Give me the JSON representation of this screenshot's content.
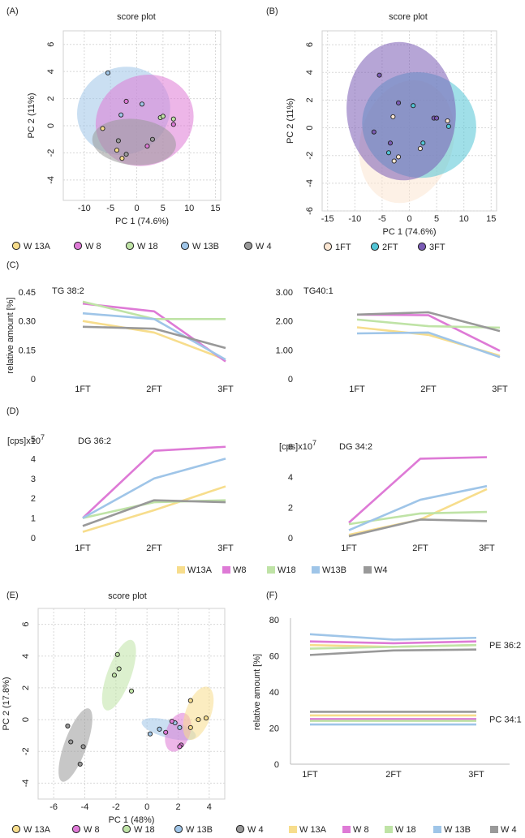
{
  "panel_letters": [
    "(A)",
    "(B)",
    "(C)",
    "(D)",
    "(E)",
    "(F)"
  ],
  "colors": {
    "W13A": "#f7dd8c",
    "W8": "#de7ad6",
    "W18": "#bfe3a6",
    "W13B": "#9fc5e8",
    "W4": "#999999",
    "FT1": "#fbe6d2",
    "FT2": "#52c5d6",
    "FT3": "#7a5bb5"
  },
  "legend_five": [
    {
      "key": "W13A",
      "label": "W 13A"
    },
    {
      "key": "W8",
      "label": "W 8"
    },
    {
      "key": "W18",
      "label": "W 18"
    },
    {
      "key": "W13B",
      "label": "W 13B"
    },
    {
      "key": "W4",
      "label": "W 4"
    }
  ],
  "legend_cd": [
    {
      "key": "W13A",
      "label": "W13A"
    },
    {
      "key": "W8",
      "label": "W8"
    },
    {
      "key": "W18",
      "label": "W18"
    },
    {
      "key": "W13B",
      "label": "W13B"
    },
    {
      "key": "W4",
      "label": "W4"
    }
  ],
  "legend_ft": [
    {
      "key": "FT1",
      "label": "1FT"
    },
    {
      "key": "FT2",
      "label": "2FT"
    },
    {
      "key": "FT3",
      "label": "3FT"
    }
  ],
  "chart_data": [
    {
      "id": "A",
      "type": "scatter",
      "title": "score plot",
      "xlabel": "PC 1 (74.6%)",
      "ylabel": "PC 2 (11%)",
      "xlim": [
        -14,
        16
      ],
      "ylim": [
        -5.5,
        7
      ],
      "xticks": [
        -10,
        -5,
        0,
        5,
        10,
        15
      ],
      "yticks": [
        -4,
        -2,
        0,
        2,
        4,
        6
      ],
      "grid": true,
      "ellipses": [
        {
          "group": "W13B",
          "cx": -2.5,
          "cy": 1.1,
          "rx": 9,
          "ry": 3.2,
          "angle": -25
        },
        {
          "group": "W8",
          "cx": 1.5,
          "cy": 0.4,
          "rx": 9.5,
          "ry": 3.3,
          "angle": -25
        },
        {
          "group": "W4",
          "cx": -0.5,
          "cy": -1.2,
          "rx": 8,
          "ry": 1.7,
          "angle": 5
        }
      ],
      "points": [
        {
          "group": "W13B",
          "x": -5.5,
          "y": 3.9
        },
        {
          "group": "W13B",
          "x": -3,
          "y": 0.8
        },
        {
          "group": "W13B",
          "x": 1,
          "y": 1.6
        },
        {
          "group": "W8",
          "x": -2,
          "y": 1.8
        },
        {
          "group": "W8",
          "x": 2,
          "y": -1.5
        },
        {
          "group": "W8",
          "x": 7,
          "y": 0.1
        },
        {
          "group": "W18",
          "x": 4.5,
          "y": 0.6
        },
        {
          "group": "W18",
          "x": 5,
          "y": 0.7
        },
        {
          "group": "W18",
          "x": 7,
          "y": 0.5
        },
        {
          "group": "W4",
          "x": -3.5,
          "y": -1.1
        },
        {
          "group": "W4",
          "x": -2,
          "y": -2.1
        },
        {
          "group": "W4",
          "x": 3,
          "y": -1.0
        },
        {
          "group": "W13A",
          "x": -6.5,
          "y": -0.2
        },
        {
          "group": "W13A",
          "x": -3.8,
          "y": -1.8
        },
        {
          "group": "W13A",
          "x": -2.8,
          "y": -2.4
        }
      ]
    },
    {
      "id": "B",
      "type": "scatter",
      "title": "score plot",
      "xlabel": "PC 1 (74.6%)",
      "ylabel": "PC 2 (11%)",
      "xlim": [
        -16,
        16
      ],
      "ylim": [
        -6,
        7
      ],
      "xticks": [
        -15,
        -10,
        -5,
        0,
        5,
        10,
        15
      ],
      "yticks": [
        -6,
        -4,
        -2,
        0,
        2,
        4,
        6
      ],
      "grid": true,
      "ellipses": [
        {
          "group": "FT1",
          "cx": -0.5,
          "cy": -1.0,
          "rx": 8.5,
          "ry": 4.5,
          "angle": 15
        },
        {
          "group": "FT2",
          "cx": 1.8,
          "cy": 0.2,
          "rx": 10.5,
          "ry": 3.8,
          "angle": 12
        },
        {
          "group": "FT3",
          "cx": -1.5,
          "cy": 1.2,
          "rx": 10,
          "ry": 5,
          "angle": -5
        }
      ],
      "points": [
        {
          "group": "FT3",
          "x": -5.5,
          "y": 3.8
        },
        {
          "group": "FT3",
          "x": -2,
          "y": 1.8
        },
        {
          "group": "FT3",
          "x": -6.5,
          "y": -0.3
        },
        {
          "group": "FT3",
          "x": -3.5,
          "y": -1.1
        },
        {
          "group": "FT3",
          "x": 4.5,
          "y": 0.7
        },
        {
          "group": "FT3",
          "x": 5,
          "y": 0.7
        },
        {
          "group": "FT2",
          "x": 0.7,
          "y": 1.6
        },
        {
          "group": "FT2",
          "x": 2.5,
          "y": -1.1
        },
        {
          "group": "FT2",
          "x": 7.2,
          "y": 0.1
        },
        {
          "group": "FT2",
          "x": -3.8,
          "y": -1.8
        },
        {
          "group": "FT1",
          "x": -3,
          "y": 0.8
        },
        {
          "group": "FT1",
          "x": 7,
          "y": 0.5
        },
        {
          "group": "FT1",
          "x": 2,
          "y": -1.5
        },
        {
          "group": "FT1",
          "x": -2,
          "y": -2.1
        },
        {
          "group": "FT1",
          "x": -2.8,
          "y": -2.4
        }
      ]
    },
    {
      "id": "C1",
      "type": "line",
      "annotation": "TG 38:2",
      "ylabel": "relative amount [%]",
      "categories": [
        "1FT",
        "2FT",
        "3FT"
      ],
      "ylim": [
        0,
        0.45
      ],
      "yticks": [
        0,
        0.15,
        0.3,
        0.45
      ],
      "yticklabels": [
        "0",
        "0.15",
        "0.30",
        "0.45"
      ],
      "series": [
        {
          "key": "W13A",
          "values": [
            0.3,
            0.24,
            0.1
          ]
        },
        {
          "key": "W8",
          "values": [
            0.39,
            0.35,
            0.09
          ]
        },
        {
          "key": "W18",
          "values": [
            0.4,
            0.31,
            0.31
          ]
        },
        {
          "key": "W13B",
          "values": [
            0.34,
            0.31,
            0.1
          ]
        },
        {
          "key": "W4",
          "values": [
            0.27,
            0.26,
            0.16
          ]
        }
      ]
    },
    {
      "id": "C2",
      "type": "line",
      "annotation": "TG40:1",
      "categories": [
        "1FT",
        "2FT",
        "3FT"
      ],
      "ylim": [
        0,
        3
      ],
      "yticks": [
        0,
        1,
        2,
        3
      ],
      "yticklabels": [
        "0",
        "1.00",
        "2.00",
        "3.00"
      ],
      "series": [
        {
          "key": "W13A",
          "values": [
            1.78,
            1.52,
            0.8
          ]
        },
        {
          "key": "W8",
          "values": [
            2.22,
            2.2,
            0.97
          ]
        },
        {
          "key": "W18",
          "values": [
            2.05,
            1.82,
            1.77
          ]
        },
        {
          "key": "W13B",
          "values": [
            1.57,
            1.6,
            0.75
          ]
        },
        {
          "key": "W4",
          "values": [
            2.22,
            2.3,
            1.65
          ]
        }
      ]
    },
    {
      "id": "D1",
      "type": "line",
      "annotation": "DG 36:2",
      "unit": "[cps]x10",
      "unit_exp": "7",
      "categories": [
        "1FT",
        "2FT",
        "3FT"
      ],
      "ylim": [
        0,
        5
      ],
      "yticks": [
        0,
        1,
        2,
        3,
        4,
        5
      ],
      "yticklabels": [
        "0",
        "1",
        "2",
        "3",
        "4",
        "5"
      ],
      "series": [
        {
          "key": "W13A",
          "values": [
            0.3,
            1.4,
            2.6
          ]
        },
        {
          "key": "W8",
          "values": [
            1.0,
            4.4,
            4.6
          ]
        },
        {
          "key": "W18",
          "values": [
            1.0,
            1.8,
            1.9
          ]
        },
        {
          "key": "W13B",
          "values": [
            1.0,
            3.0,
            4.0
          ]
        },
        {
          "key": "W4",
          "values": [
            0.6,
            1.9,
            1.8
          ]
        }
      ]
    },
    {
      "id": "D2",
      "type": "line",
      "annotation": "DG 34:2",
      "unit": "[cps]x10",
      "unit_exp": "7",
      "categories": [
        "1FT",
        "2FT",
        "3FT"
      ],
      "ylim": [
        0,
        6.5
      ],
      "yticks": [
        0,
        2,
        4,
        6
      ],
      "yticklabels": [
        "0",
        "2",
        "4",
        "6"
      ],
      "series": [
        {
          "key": "W13A",
          "values": [
            0.2,
            1.2,
            3.2
          ]
        },
        {
          "key": "W8",
          "values": [
            1.0,
            5.2,
            5.3
          ]
        },
        {
          "key": "W18",
          "values": [
            0.9,
            1.6,
            1.7
          ]
        },
        {
          "key": "W13B",
          "values": [
            0.5,
            2.5,
            3.4
          ]
        },
        {
          "key": "W4",
          "values": [
            0.1,
            1.2,
            1.1
          ]
        }
      ]
    },
    {
      "id": "E",
      "type": "scatter",
      "title": "score plot",
      "xlabel": "PC 1 (48%)",
      "ylabel": "PC 2 (17.8%)",
      "xlim": [
        -7,
        5
      ],
      "ylim": [
        -5,
        7
      ],
      "xticks": [
        -6,
        -4,
        -2,
        0,
        2,
        4
      ],
      "yticks": [
        -4,
        -2,
        0,
        2,
        4,
        6
      ],
      "grid": true,
      "ellipses": [
        {
          "group": "W18",
          "cx": -1.8,
          "cy": 2.8,
          "rx": 2.4,
          "ry": 0.75,
          "angle": -70
        },
        {
          "group": "W4",
          "cx": -4.6,
          "cy": -1.6,
          "rx": 2.5,
          "ry": 0.7,
          "angle": -70
        },
        {
          "group": "W13B",
          "cx": 1.4,
          "cy": -0.6,
          "rx": 1.8,
          "ry": 0.55,
          "angle": 15
        },
        {
          "group": "W8",
          "cx": 2.0,
          "cy": -0.8,
          "rx": 1.3,
          "ry": 0.75,
          "angle": -70
        },
        {
          "group": "W13A",
          "cx": 3.3,
          "cy": 0.4,
          "rx": 1.8,
          "ry": 0.8,
          "angle": -70
        }
      ],
      "points": [
        {
          "group": "W18",
          "x": -1.9,
          "y": 4.1
        },
        {
          "group": "W18",
          "x": -1.8,
          "y": 3.2
        },
        {
          "group": "W18",
          "x": -2.1,
          "y": 2.8
        },
        {
          "group": "W18",
          "x": -1.0,
          "y": 1.8
        },
        {
          "group": "W4",
          "x": -5.1,
          "y": -0.4
        },
        {
          "group": "W4",
          "x": -4.9,
          "y": -1.4
        },
        {
          "group": "W4",
          "x": -4.1,
          "y": -1.7
        },
        {
          "group": "W4",
          "x": -4.3,
          "y": -2.8
        },
        {
          "group": "W13B",
          "x": 0.2,
          "y": -0.9
        },
        {
          "group": "W13B",
          "x": 0.8,
          "y": -0.6
        },
        {
          "group": "W13B",
          "x": 1.8,
          "y": -0.2
        },
        {
          "group": "W13B",
          "x": 2.1,
          "y": -0.5
        },
        {
          "group": "W8",
          "x": 1.2,
          "y": -0.8
        },
        {
          "group": "W8",
          "x": 1.6,
          "y": -0.1
        },
        {
          "group": "W8",
          "x": 2.2,
          "y": -1.6
        },
        {
          "group": "W8",
          "x": 2.1,
          "y": -1.7
        },
        {
          "group": "W13A",
          "x": 2.8,
          "y": 1.2
        },
        {
          "group": "W13A",
          "x": 3.3,
          "y": 0.0
        },
        {
          "group": "W13A",
          "x": 3.8,
          "y": 0.1
        },
        {
          "group": "W13A",
          "x": 2.8,
          "y": -0.5
        }
      ]
    },
    {
      "id": "F",
      "type": "line",
      "ylabel": "relative amount [%]",
      "categories": [
        "1FT",
        "2FT",
        "3FT"
      ],
      "ylim": [
        0,
        80
      ],
      "yticks": [
        0,
        20,
        40,
        60,
        80
      ],
      "yticklabels": [
        "0",
        "20",
        "40",
        "60",
        "80"
      ],
      "annotations": [
        {
          "text": "PE 36:2",
          "y": 66
        },
        {
          "text": "PC 34:1",
          "y": 25
        }
      ],
      "series": [
        {
          "key": "W13B",
          "values": [
            72,
            69,
            70
          ]
        },
        {
          "key": "W8",
          "values": [
            68,
            67,
            68
          ]
        },
        {
          "key": "W13A",
          "values": [
            66,
            65,
            66
          ]
        },
        {
          "key": "W18",
          "values": [
            64,
            65,
            66
          ]
        },
        {
          "key": "W4",
          "values": [
            60.5,
            63,
            63.5
          ]
        },
        {
          "key": "W4",
          "values": [
            29,
            29,
            29
          ]
        },
        {
          "key": "W13A",
          "values": [
            27,
            27,
            27
          ]
        },
        {
          "key": "W8",
          "values": [
            25,
            25,
            25
          ]
        },
        {
          "key": "W18",
          "values": [
            24,
            24,
            24
          ]
        },
        {
          "key": "W13B",
          "values": [
            22,
            22,
            22
          ]
        }
      ]
    }
  ]
}
